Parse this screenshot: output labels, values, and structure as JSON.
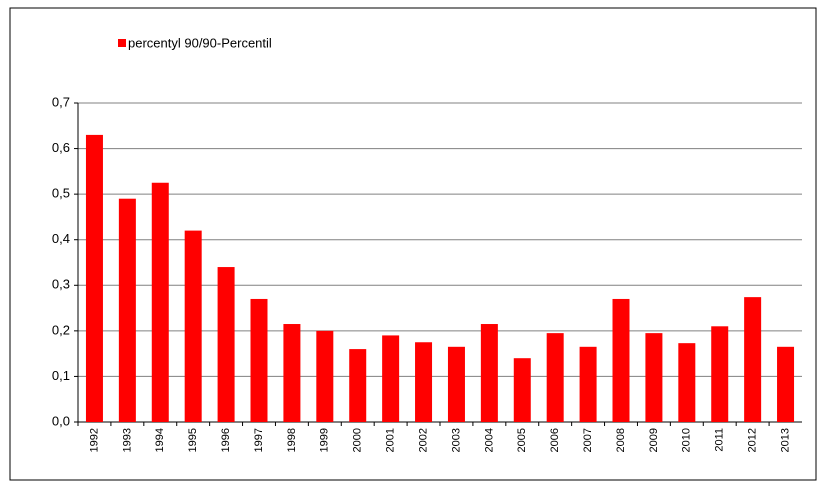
{
  "chart_data": {
    "type": "bar",
    "categories": [
      "1992",
      "1993",
      "1994",
      "1995",
      "1996",
      "1997",
      "1998",
      "1999",
      "2000",
      "2001",
      "2002",
      "2003",
      "2004",
      "2005",
      "2006",
      "2007",
      "2008",
      "2009",
      "2010",
      "2011",
      "2012",
      "2013"
    ],
    "series": [
      {
        "name": "percentyl 90/90-Percentil",
        "color": "#ff0000",
        "values": [
          0.63,
          0.49,
          0.525,
          0.42,
          0.34,
          0.27,
          0.215,
          0.2,
          0.16,
          0.19,
          0.175,
          0.165,
          0.215,
          0.14,
          0.195,
          0.165,
          0.27,
          0.195,
          0.173,
          0.21,
          0.274,
          0.165
        ]
      }
    ],
    "ylim": [
      0,
      0.7
    ],
    "yticks": [
      {
        "value": 0,
        "label": "0,0"
      },
      {
        "value": 0.1,
        "label": "0,1"
      },
      {
        "value": 0.2,
        "label": "0,2"
      },
      {
        "value": 0.3,
        "label": "0,3"
      },
      {
        "value": 0.4,
        "label": "0,4"
      },
      {
        "value": 0.5,
        "label": "0,5"
      },
      {
        "value": 0.6,
        "label": "0,6"
      },
      {
        "value": 0.7,
        "label": "0,7"
      }
    ],
    "grid": true,
    "legend": "top-left"
  }
}
